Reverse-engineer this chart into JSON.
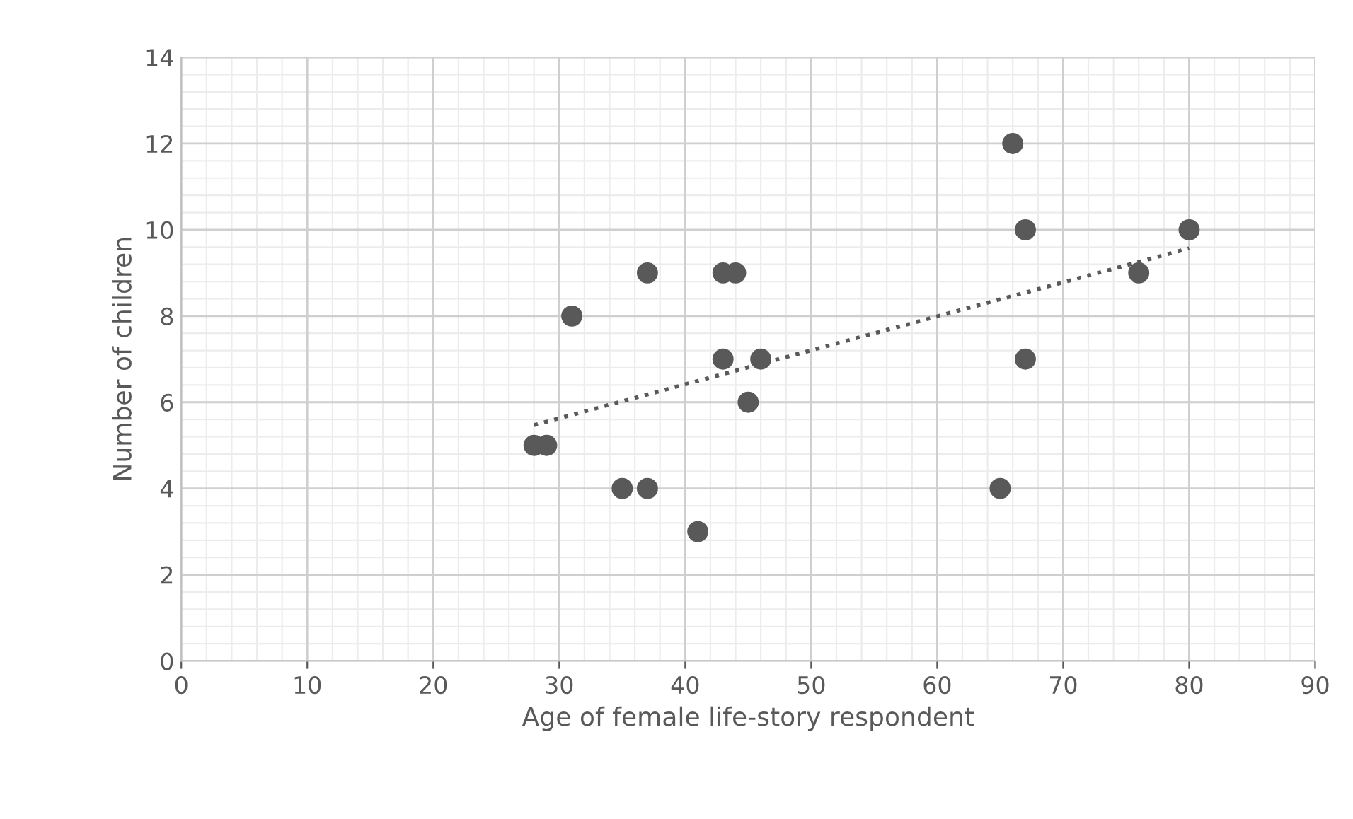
{
  "chart_data": {
    "type": "scatter",
    "xlabel": "Age of female life-story respondent",
    "ylabel": "Number of children",
    "xlim": [
      0,
      90
    ],
    "xticks": [
      0,
      10,
      20,
      30,
      40,
      50,
      60,
      70,
      80,
      90
    ],
    "ylim": [
      0,
      14
    ],
    "yticks": [
      0,
      2,
      4,
      6,
      8,
      10,
      12,
      14
    ],
    "grid": true,
    "legend": false,
    "series": [
      {
        "marker": "circle",
        "color": "#595959",
        "x": [
          28,
          29,
          31,
          35,
          37,
          37,
          41,
          43,
          44,
          43,
          46,
          45,
          65,
          66,
          67,
          67,
          76,
          80
        ],
        "values": [
          5,
          5,
          8,
          4,
          9,
          4,
          3,
          9,
          9,
          7,
          7,
          6,
          4,
          12,
          10,
          7,
          9,
          10
        ]
      },
      {
        "type": "line",
        "marker": "none",
        "color": "#595959",
        "line_style": "dotted",
        "x": [
          28,
          80
        ],
        "values": [
          5.47,
          9.57
        ]
      }
    ]
  }
}
